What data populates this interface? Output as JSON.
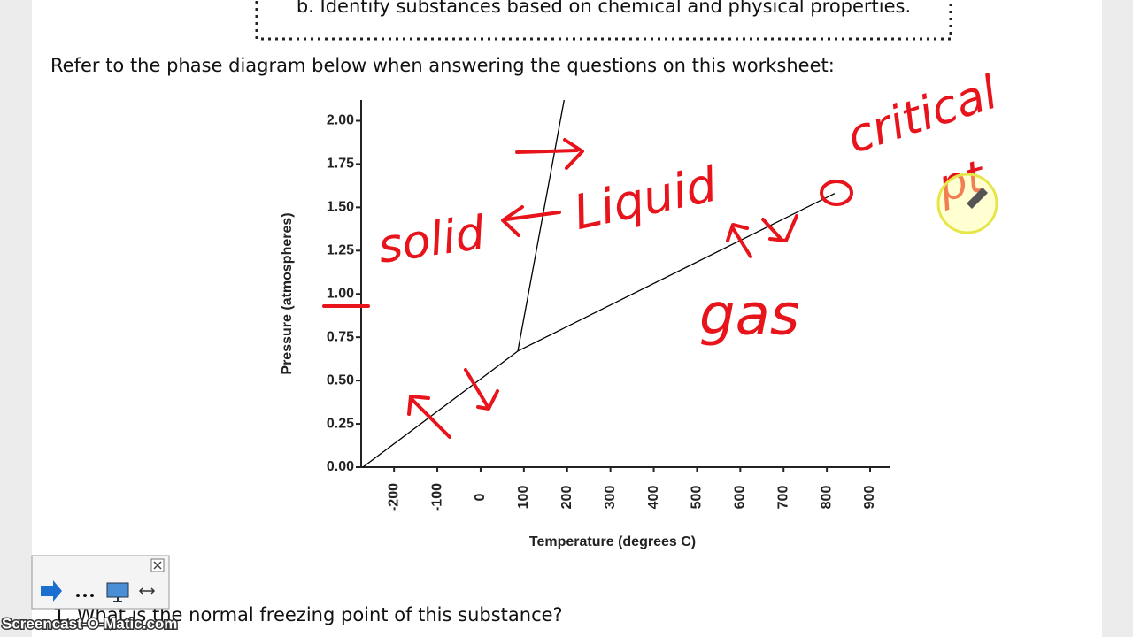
{
  "header": {
    "text": "b. Identify substances based on chemical and physical properties."
  },
  "intro": "Refer to the phase diagram below when answering the questions on this worksheet:",
  "chart_data": {
    "type": "line",
    "x_label": "Temperature (degrees C)",
    "y_label": "Pressure (atmospheres)",
    "xlim": [
      -276,
      947
    ],
    "ylim": [
      0,
      2.12
    ],
    "xticks": [
      -200,
      -100,
      0,
      100,
      200,
      300,
      400,
      500,
      600,
      700,
      800,
      900
    ],
    "yticks": [
      {
        "value": 0,
        "label": "0.00"
      },
      {
        "value": 0.25,
        "label": "0.25"
      },
      {
        "value": 0.5,
        "label": "0.50"
      },
      {
        "value": 0.75,
        "label": "0.75"
      },
      {
        "value": 1,
        "label": "1.00"
      },
      {
        "value": 1.25,
        "label": "1.25"
      },
      {
        "value": 1.5,
        "label": "1.50"
      },
      {
        "value": 1.75,
        "label": "1.75"
      },
      {
        "value": 2,
        "label": "2.00"
      }
    ],
    "series": [
      {
        "color": "#000000",
        "x": [
          -272,
          86
        ],
        "values": [
          0,
          0.67
        ]
      },
      {
        "color": "#000000",
        "x": [
          86,
          193
        ],
        "values": [
          0.67,
          2.12
        ]
      },
      {
        "color": "#000000",
        "x": [
          86,
          818
        ],
        "values": [
          0.67,
          1.58
        ]
      }
    ]
  },
  "annotations": [
    "solid",
    "Liquid",
    "gas",
    "critical",
    "pt"
  ],
  "question": "1. What is the normal freezing point of this substance?",
  "watermark": "Screencast-O-Matic.com"
}
